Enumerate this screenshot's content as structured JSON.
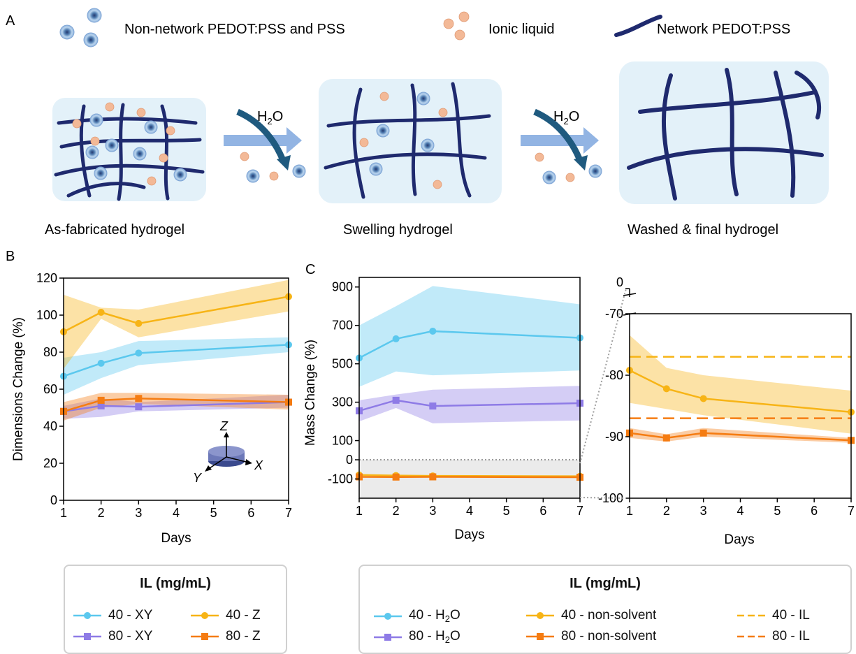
{
  "panel_labels": [
    "A",
    "B",
    "C"
  ],
  "schematic": {
    "legend": {
      "non_network": "Non-network PEDOT:PSS and PSS",
      "ionic_liquid": "Ionic liquid",
      "network": "Network PEDOT:PSS"
    },
    "stages": [
      "As-fabricated hydrogel",
      "Swelling hydrogel",
      "Washed & final hydrogel"
    ],
    "arrow_label": "H",
    "arrow_label_sub": "2",
    "arrow_label_tail": "O"
  },
  "colors": {
    "light_blue": "#5bc8ee",
    "purple": "#8e7be6",
    "yellow": "#f7b416",
    "orange": "#f57c12",
    "navy": "#1f2a6e",
    "cell_bg": "#e3f1f9",
    "arrow": "#92b4e3",
    "ion": "#f3b997"
  },
  "chart_data": [
    {
      "type": "line",
      "panel": "B",
      "xlabel": "Days",
      "ylabel": "Dimensions Change (%)",
      "xlim": [
        1,
        7
      ],
      "ylim": [
        0,
        120
      ],
      "xticks": [
        1,
        2,
        3,
        4,
        5,
        6,
        7
      ],
      "yticks": [
        0,
        20,
        40,
        60,
        80,
        100,
        120
      ],
      "inset_axes": [
        "Z",
        "X",
        "Y"
      ],
      "series": [
        {
          "name": "40 - XY",
          "x": [
            1,
            2,
            3,
            7
          ],
          "y": [
            67,
            74,
            79.5,
            84
          ],
          "lower": [
            57,
            66,
            73,
            80
          ],
          "upper": [
            77,
            80,
            86,
            88
          ],
          "color": "#5bc8ee",
          "marker": "circle"
        },
        {
          "name": "80 - XY",
          "x": [
            1,
            2,
            3,
            7
          ],
          "y": [
            48,
            51,
            50.5,
            53
          ],
          "lower": [
            44,
            45,
            48,
            50
          ],
          "upper": [
            51,
            55,
            53,
            57
          ],
          "color": "#8e7be6",
          "marker": "square"
        },
        {
          "name": "40 - Z",
          "x": [
            1,
            2,
            3,
            7
          ],
          "y": [
            91,
            101.5,
            95.5,
            110
          ],
          "lower": [
            71,
            98,
            88,
            102
          ],
          "upper": [
            111,
            104,
            103,
            119
          ],
          "color": "#f7b416",
          "marker": "circle"
        },
        {
          "name": "80 - Z",
          "x": [
            1,
            2,
            3,
            7
          ],
          "y": [
            48,
            54,
            55,
            53
          ],
          "lower": [
            43,
            50,
            52,
            49
          ],
          "upper": [
            53,
            58,
            58,
            57
          ],
          "color": "#f57c12",
          "marker": "square"
        }
      ],
      "legend": {
        "title": "IL (mg/mL)",
        "items": [
          "40 - XY",
          "40 - Z",
          "80 - XY",
          "80 - Z"
        ]
      }
    },
    {
      "type": "line",
      "panel": "C-left",
      "xlabel": "Days",
      "ylabel": "Mass Change (%)",
      "xlim": [
        1,
        7
      ],
      "ylim": [
        -200,
        950
      ],
      "xticks": [
        1,
        2,
        3,
        4,
        5,
        6,
        7
      ],
      "yticks": [
        -100,
        0,
        100,
        300,
        500,
        700,
        900
      ],
      "series": [
        {
          "name": "40 - H2O",
          "x": [
            1,
            2,
            3,
            7
          ],
          "y": [
            530,
            630,
            670,
            635
          ],
          "lower": [
            380,
            460,
            440,
            465
          ],
          "upper": [
            700,
            800,
            905,
            810
          ],
          "color": "#5bc8ee",
          "marker": "circle"
        },
        {
          "name": "80 - H2O",
          "x": [
            1,
            2,
            3,
            7
          ],
          "y": [
            255,
            310,
            280,
            295
          ],
          "lower": [
            200,
            270,
            190,
            205
          ],
          "upper": [
            310,
            340,
            365,
            385
          ],
          "color": "#8e7be6",
          "marker": "square"
        },
        {
          "name": "40 - non-solvent",
          "x": [
            1,
            2,
            3,
            7
          ],
          "y": [
            -79,
            -82,
            -84,
            -86
          ],
          "color": "#f7b416",
          "marker": "circle"
        },
        {
          "name": "80 - non-solvent",
          "x": [
            1,
            2,
            3,
            7
          ],
          "y": [
            -89,
            -90,
            -89,
            -91
          ],
          "color": "#f57c12",
          "marker": "square"
        }
      ]
    },
    {
      "type": "line",
      "panel": "C-right",
      "xlabel": "Days",
      "xlim": [
        1,
        7
      ],
      "ylim": [
        -100,
        -70
      ],
      "xticks": [
        1,
        2,
        3,
        4,
        5,
        6,
        7
      ],
      "yticks": [
        -100,
        -90,
        -80,
        -70
      ],
      "break_tick": 0,
      "series": [
        {
          "name": "40 - non-solvent",
          "x": [
            1,
            2,
            3,
            7
          ],
          "y": [
            -79.2,
            -82.2,
            -83.8,
            -86
          ],
          "lower": [
            -84.5,
            -85.5,
            -86.5,
            -89.5
          ],
          "upper": [
            -73.5,
            -78.8,
            -80,
            -82.5
          ],
          "color": "#f7b416",
          "marker": "circle"
        },
        {
          "name": "80 - non-solvent",
          "x": [
            1,
            2,
            3,
            7
          ],
          "y": [
            -89.4,
            -90.2,
            -89.4,
            -90.6
          ],
          "lower": [
            -90.2,
            -90.8,
            -90,
            -91
          ],
          "upper": [
            -88.6,
            -89.6,
            -88.6,
            -90.2
          ],
          "color": "#f57c12",
          "marker": "square"
        },
        {
          "name": "40 - IL",
          "y": -77,
          "color": "#f7b416",
          "dashed": true
        },
        {
          "name": "80 - IL",
          "y": -87,
          "color": "#f57c12",
          "dashed": true
        }
      ],
      "legend": {
        "title": "IL (mg/mL)",
        "items": [
          "40 - H2O",
          "40 - non-solvent",
          "40 - IL",
          "80 - H2O",
          "80 - non-solvent",
          "80 - IL"
        ]
      }
    }
  ],
  "legend_b": {
    "title": "IL (mg/mL)",
    "items": [
      {
        "label": "40 - XY",
        "color": "#5bc8ee",
        "marker": "circle"
      },
      {
        "label": "40 - Z",
        "color": "#f7b416",
        "marker": "circle"
      },
      {
        "label": "80 - XY",
        "color": "#8e7be6",
        "marker": "square"
      },
      {
        "label": "80 - Z",
        "color": "#f57c12",
        "marker": "square"
      }
    ]
  },
  "legend_c": {
    "title": "IL (mg/mL)",
    "h2o_40_prefix": "40 - H",
    "h2o_80_prefix": "80 - H",
    "h2o_sub": "2",
    "h2o_tail": "O",
    "ns_40": "40 - non-solvent",
    "ns_80": "80 - non-solvent",
    "il_40": "40 - IL",
    "il_80": "80 - IL"
  }
}
